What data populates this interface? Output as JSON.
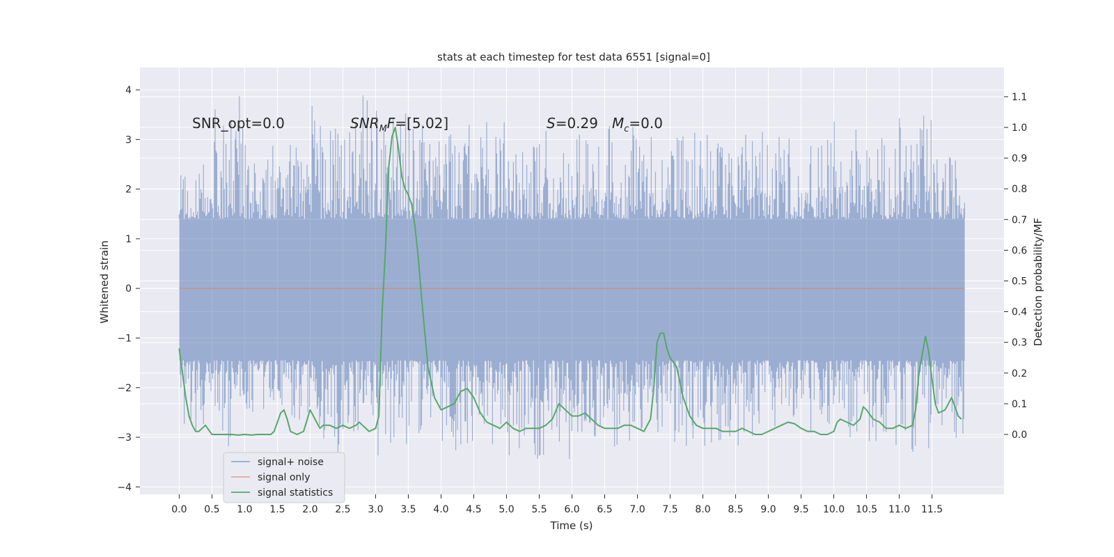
{
  "colors": {
    "plot_background": "#EAEAF2",
    "grid": "#FFFFFF",
    "signal_noise": "#4C72B0",
    "signal_only": "#DD8452",
    "signal_statistics": "#55A868",
    "text": "#262626"
  },
  "chart_data": {
    "type": "line",
    "title": "stats at each timestep for test data 6551 [signal=0]",
    "xlabel": "Time (s)",
    "ylabel": "Whitened strain",
    "ylabel_right": "Detection probability/MF",
    "xlim": [
      -0.6,
      12.6
    ],
    "ylim": [
      -4.15,
      4.45
    ],
    "ylim_right": [
      -0.195,
      1.195
    ],
    "xticks": [
      "0.0",
      "0.5",
      "1.0",
      "1.5",
      "2.0",
      "2.5",
      "3.0",
      "3.5",
      "4.0",
      "4.5",
      "5.0",
      "5.5",
      "6.0",
      "6.5",
      "7.0",
      "7.5",
      "8.0",
      "8.5",
      "9.0",
      "9.5",
      "10.0",
      "10.5",
      "11.0",
      "11.5"
    ],
    "yticks_left": [
      "4",
      "3",
      "2",
      "1",
      "0",
      "−1",
      "−2",
      "−3",
      "−4"
    ],
    "yticks_right": [
      "1.1",
      "1.0",
      "0.9",
      "0.8",
      "0.7",
      "0.6",
      "0.5",
      "0.4",
      "0.3",
      "0.2",
      "0.1",
      "0.0"
    ],
    "grid": true,
    "legend_position": "lower-left",
    "annotations": {
      "snr_opt": "SNR_opt=0.0",
      "snr_mf": "=[5.02]",
      "s_stat": "=0.29",
      "mc": "=0.0"
    },
    "series": [
      {
        "name": "signal+ noise",
        "axis": "left",
        "x_range": [
          0.0,
          12.0
        ],
        "spike_envelope_upper": [
          2.5,
          4.1,
          3.1,
          2.9,
          3.7,
          3.9,
          3.6,
          3.5,
          3.3,
          3.4,
          2.9,
          3.2,
          3.1,
          3.3,
          3.2,
          3.3,
          3.1,
          3.2,
          3.3,
          3.0,
          3.4,
          3.1,
          3.5,
          2.7
        ],
        "spike_envelope_lower": [
          -2.9,
          -3.3,
          -2.6,
          -2.7,
          -3.4,
          -2.9,
          -3.6,
          -3.0,
          -3.3,
          -3.2,
          -3.5,
          -3.5,
          -3.0,
          -3.2,
          -3.0,
          -3.2,
          -3.4,
          -3.3,
          -2.9,
          -3.0,
          -3.0,
          -3.2,
          -3.3,
          -3.1
        ],
        "band": [
          -1.45,
          1.4
        ]
      },
      {
        "name": "signal only",
        "axis": "left",
        "x": [
          0.0,
          12.0
        ],
        "y": [
          0.0,
          0.0
        ]
      },
      {
        "name": "signal statistics",
        "axis": "right",
        "x": [
          0.0,
          0.05,
          0.1,
          0.15,
          0.2,
          0.25,
          0.3,
          0.4,
          0.5,
          0.6,
          0.7,
          0.8,
          0.9,
          1.0,
          1.1,
          1.2,
          1.3,
          1.4,
          1.45,
          1.5,
          1.55,
          1.6,
          1.65,
          1.7,
          1.8,
          1.9,
          2.0,
          2.05,
          2.1,
          2.15,
          2.2,
          2.3,
          2.4,
          2.5,
          2.6,
          2.7,
          2.75,
          2.8,
          2.9,
          3.0,
          3.05,
          3.1,
          3.15,
          3.2,
          3.25,
          3.3,
          3.35,
          3.4,
          3.45,
          3.5,
          3.55,
          3.6,
          3.65,
          3.7,
          3.8,
          3.9,
          4.0,
          4.1,
          4.2,
          4.3,
          4.4,
          4.5,
          4.6,
          4.7,
          4.8,
          4.9,
          5.0,
          5.1,
          5.2,
          5.3,
          5.4,
          5.5,
          5.6,
          5.7,
          5.8,
          5.9,
          6.0,
          6.1,
          6.2,
          6.3,
          6.4,
          6.5,
          6.6,
          6.7,
          6.8,
          6.9,
          7.0,
          7.1,
          7.2,
          7.25,
          7.3,
          7.35,
          7.4,
          7.45,
          7.5,
          7.6,
          7.7,
          7.8,
          7.9,
          8.0,
          8.1,
          8.2,
          8.3,
          8.4,
          8.5,
          8.6,
          8.7,
          8.8,
          8.9,
          9.0,
          9.1,
          9.2,
          9.3,
          9.4,
          9.5,
          9.6,
          9.7,
          9.8,
          9.9,
          10.0,
          10.05,
          10.1,
          10.2,
          10.3,
          10.4,
          10.45,
          10.5,
          10.6,
          10.7,
          10.8,
          10.9,
          11.0,
          11.1,
          11.2,
          11.25,
          11.3,
          11.35,
          11.4,
          11.45,
          11.5,
          11.55,
          11.6,
          11.7,
          11.8,
          11.9,
          11.95
        ],
        "y": [
          0.28,
          0.2,
          0.12,
          0.06,
          0.03,
          0.01,
          0.01,
          0.03,
          0.0,
          0.0,
          0.0,
          0.0,
          -0.002,
          0.0,
          -0.002,
          0.0,
          0.0,
          0.0,
          0.01,
          0.04,
          0.07,
          0.08,
          0.05,
          0.01,
          0.0,
          0.01,
          0.08,
          0.06,
          0.04,
          0.02,
          0.03,
          0.03,
          0.02,
          0.03,
          0.02,
          0.03,
          0.04,
          0.03,
          0.01,
          0.02,
          0.06,
          0.4,
          0.6,
          0.87,
          0.97,
          1.0,
          0.93,
          0.84,
          0.8,
          0.78,
          0.75,
          0.68,
          0.58,
          0.45,
          0.22,
          0.12,
          0.08,
          0.09,
          0.1,
          0.14,
          0.15,
          0.12,
          0.07,
          0.04,
          0.03,
          0.02,
          0.04,
          0.02,
          0.01,
          0.02,
          0.02,
          0.02,
          0.03,
          0.05,
          0.1,
          0.08,
          0.06,
          0.06,
          0.07,
          0.05,
          0.03,
          0.02,
          0.02,
          0.02,
          0.03,
          0.03,
          0.02,
          0.01,
          0.05,
          0.15,
          0.3,
          0.33,
          0.33,
          0.28,
          0.25,
          0.22,
          0.12,
          0.06,
          0.03,
          0.02,
          0.02,
          0.02,
          0.01,
          0.01,
          0.01,
          0.02,
          0.01,
          0.0,
          0.0,
          0.01,
          0.02,
          0.03,
          0.04,
          0.035,
          0.02,
          0.01,
          0.01,
          0.0,
          0.0,
          0.01,
          0.04,
          0.05,
          0.04,
          0.03,
          0.05,
          0.09,
          0.08,
          0.05,
          0.04,
          0.02,
          0.02,
          0.03,
          0.02,
          0.03,
          0.08,
          0.2,
          0.26,
          0.32,
          0.27,
          0.18,
          0.1,
          0.07,
          0.08,
          0.12,
          0.06,
          0.05
        ]
      }
    ]
  }
}
